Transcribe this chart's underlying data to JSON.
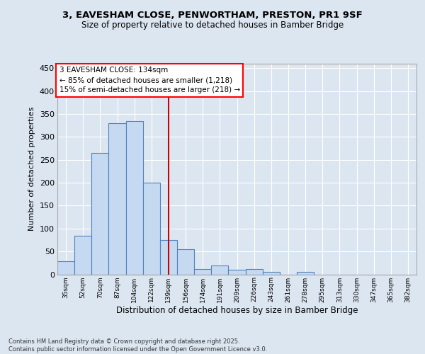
{
  "title1": "3, EAVESHAM CLOSE, PENWORTHAM, PRESTON, PR1 9SF",
  "title2": "Size of property relative to detached houses in Bamber Bridge",
  "xlabel": "Distribution of detached houses by size in Bamber Bridge",
  "ylabel": "Number of detached properties",
  "footer": "Contains HM Land Registry data © Crown copyright and database right 2025.\nContains public sector information licensed under the Open Government Licence v3.0.",
  "annotation_line1": "3 EAVESHAM CLOSE: 134sqm",
  "annotation_line2": "← 85% of detached houses are smaller (1,218)",
  "annotation_line3": "15% of semi-detached houses are larger (218) →",
  "bar_labels": [
    "35sqm",
    "52sqm",
    "70sqm",
    "87sqm",
    "104sqm",
    "122sqm",
    "139sqm",
    "156sqm",
    "174sqm",
    "191sqm",
    "209sqm",
    "226sqm",
    "243sqm",
    "261sqm",
    "278sqm",
    "295sqm",
    "313sqm",
    "330sqm",
    "347sqm",
    "365sqm",
    "382sqm"
  ],
  "bar_values": [
    28,
    85,
    265,
    330,
    335,
    200,
    75,
    55,
    12,
    20,
    10,
    12,
    5,
    0,
    5,
    0,
    0,
    0,
    0,
    0,
    0
  ],
  "bar_color": "#c5d9f1",
  "bar_edge_color": "#4f81bd",
  "vline_pos": 6.0,
  "vline_color": "#cc0000",
  "bg_color": "#dce6f1",
  "grid_color": "#ffffff",
  "ylim": [
    0,
    460
  ],
  "yticks": [
    0,
    50,
    100,
    150,
    200,
    250,
    300,
    350,
    400,
    450
  ]
}
